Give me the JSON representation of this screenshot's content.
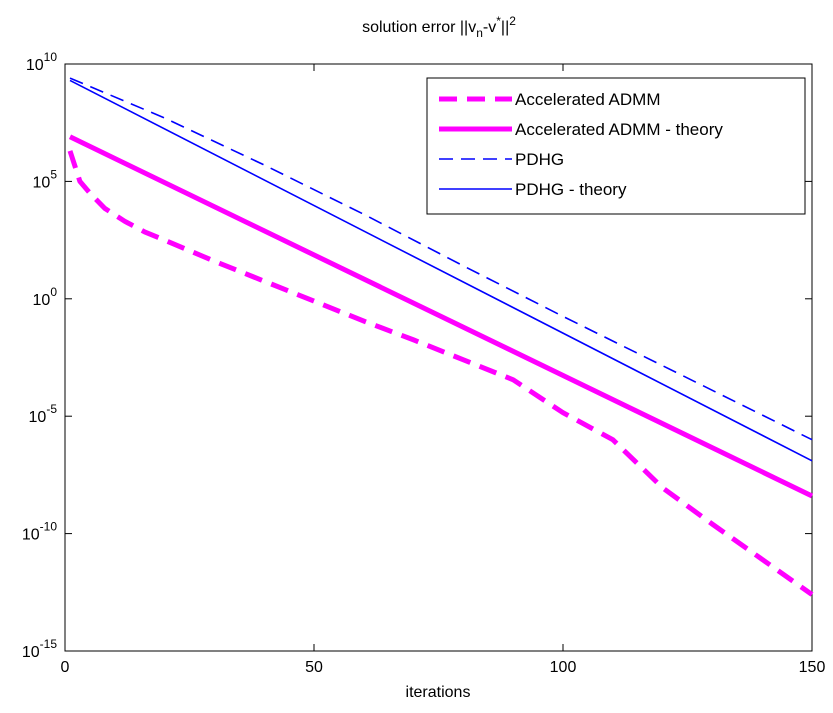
{
  "chart_data": {
    "type": "line",
    "title": {
      "text_before_sub": "solution error ||v",
      "sub": "n",
      "text_mid": "-v",
      "sup1": "*",
      "text_after": "||",
      "sup2": "2"
    },
    "xlabel": "iterations",
    "ylabel": "",
    "xlim": [
      0,
      150
    ],
    "ylim_log10": [
      -15,
      10
    ],
    "yscale": "log",
    "x_ticks": [
      0,
      50,
      100,
      150
    ],
    "x_tick_labels": [
      "0",
      "50",
      "100",
      "150"
    ],
    "y_ticks_log10": [
      10,
      5,
      0,
      -5,
      -10,
      -15
    ],
    "y_tick_labels": [
      {
        "base": "10",
        "exp": "10"
      },
      {
        "base": "10",
        "exp": "5"
      },
      {
        "base": "10",
        "exp": "0"
      },
      {
        "base": "10",
        "exp": "-5"
      },
      {
        "base": "10",
        "exp": "-10"
      },
      {
        "base": "10",
        "exp": "-15"
      }
    ],
    "grid": false,
    "legend_position": "top-right",
    "series": [
      {
        "name": "Accelerated ADMM",
        "color": "#ff00ff",
        "dash": "dashed",
        "width": "thick",
        "x": [
          1,
          3,
          5,
          8,
          12,
          16,
          20,
          25,
          30,
          40,
          50,
          60,
          70,
          80,
          90,
          100,
          110,
          120,
          130,
          140,
          150
        ],
        "log10_y": [
          6.3,
          5.0,
          4.5,
          3.85,
          3.3,
          2.85,
          2.5,
          2.05,
          1.6,
          0.75,
          -0.1,
          -0.95,
          -1.75,
          -2.6,
          -3.45,
          -4.85,
          -6.0,
          -8.05,
          -9.6,
          -11.1,
          -12.6
        ]
      },
      {
        "name": "Accelerated ADMM - theory",
        "color": "#ff00ff",
        "dash": "solid",
        "width": "thick",
        "x": [
          1,
          150
        ],
        "log10_y": [
          6.9,
          -8.4
        ]
      },
      {
        "name": "PDHG",
        "color": "#0000ff",
        "dash": "dashed",
        "width": "thin",
        "x": [
          1,
          20,
          40,
          60,
          80,
          100,
          120,
          150
        ],
        "log10_y": [
          9.4,
          7.7,
          5.7,
          3.6,
          1.4,
          -0.75,
          -2.85,
          -6.0
        ]
      },
      {
        "name": "PDHG - theory",
        "color": "#0000ff",
        "dash": "solid",
        "width": "thin",
        "x": [
          1,
          150
        ],
        "log10_y": [
          9.3,
          -6.9
        ]
      }
    ]
  }
}
